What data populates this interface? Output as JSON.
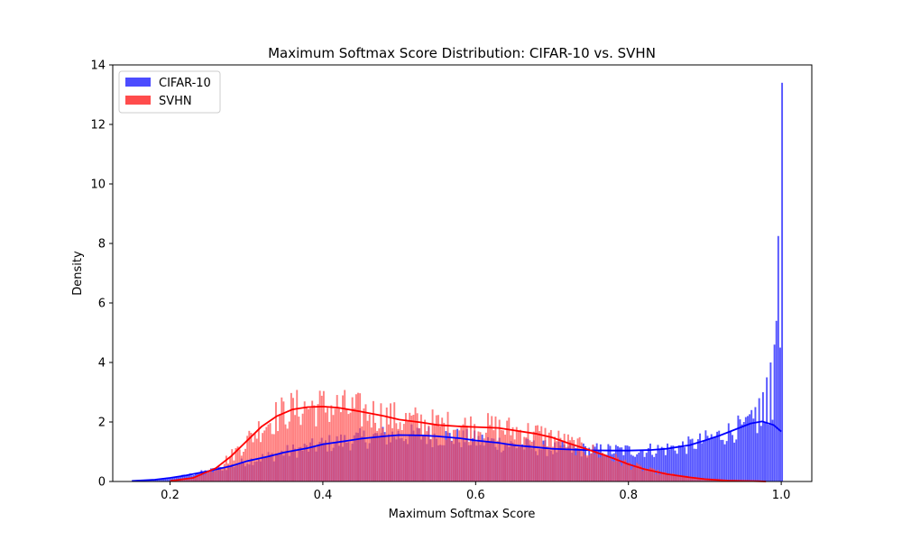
{
  "chart_data": {
    "type": "bar",
    "title": "Maximum Softmax Score Distribution: CIFAR-10 vs. SVHN",
    "xlabel": "Maximum Softmax Score",
    "ylabel": "Density",
    "xlim": [
      0.125,
      1.04
    ],
    "ylim": [
      0,
      14
    ],
    "xticks": [
      0.2,
      0.4,
      0.6,
      0.8,
      1.0
    ],
    "xtick_labels": [
      "0.2",
      "0.4",
      "0.6",
      "0.8",
      "1.0"
    ],
    "yticks": [
      0,
      2,
      4,
      6,
      8,
      10,
      12,
      14
    ],
    "ytick_labels": [
      "0",
      "2",
      "4",
      "6",
      "8",
      "10",
      "12",
      "14"
    ],
    "grid": false,
    "legend_position": "top-left",
    "series": [
      {
        "name": "CIFAR-10",
        "color": "#0000ff",
        "bar_color": "#4c4cff",
        "kde_x": [
          0.15,
          0.18,
          0.2,
          0.22,
          0.25,
          0.28,
          0.3,
          0.33,
          0.35,
          0.38,
          0.4,
          0.43,
          0.45,
          0.48,
          0.5,
          0.53,
          0.55,
          0.58,
          0.6,
          0.63,
          0.65,
          0.68,
          0.7,
          0.73,
          0.75,
          0.78,
          0.8,
          0.83,
          0.85,
          0.88,
          0.9,
          0.92,
          0.94,
          0.96,
          0.975,
          0.99,
          1.0
        ],
        "kde_y": [
          0.02,
          0.06,
          0.12,
          0.2,
          0.35,
          0.52,
          0.68,
          0.85,
          0.98,
          1.12,
          1.25,
          1.36,
          1.44,
          1.52,
          1.56,
          1.55,
          1.52,
          1.45,
          1.38,
          1.3,
          1.22,
          1.15,
          1.1,
          1.07,
          1.05,
          1.04,
          1.04,
          1.06,
          1.1,
          1.22,
          1.38,
          1.55,
          1.75,
          1.95,
          2.02,
          1.9,
          1.68
        ],
        "spike_x": [
          0.95,
          0.955,
          0.96,
          0.965,
          0.97,
          0.975,
          0.98,
          0.985,
          0.99,
          0.992,
          0.994,
          0.996,
          0.998,
          0.999
        ],
        "spike_y": [
          2.0,
          2.2,
          2.4,
          2.5,
          2.8,
          3.0,
          3.5,
          4.0,
          4.6,
          5.4,
          6.1,
          8.25,
          4.5,
          13.4
        ]
      },
      {
        "name": "SVHN",
        "color": "#ff0000",
        "bar_color": "#ff4c4c",
        "kde_x": [
          0.2,
          0.23,
          0.26,
          0.28,
          0.3,
          0.32,
          0.34,
          0.36,
          0.38,
          0.4,
          0.42,
          0.45,
          0.48,
          0.5,
          0.53,
          0.55,
          0.58,
          0.6,
          0.63,
          0.65,
          0.68,
          0.7,
          0.72,
          0.75,
          0.78,
          0.8,
          0.82,
          0.85,
          0.88,
          0.9,
          0.93,
          0.95,
          0.97,
          0.98
        ],
        "kde_y": [
          0.02,
          0.12,
          0.45,
          0.85,
          1.35,
          1.85,
          2.2,
          2.42,
          2.5,
          2.52,
          2.48,
          2.35,
          2.2,
          2.08,
          1.98,
          1.9,
          1.85,
          1.83,
          1.8,
          1.72,
          1.6,
          1.48,
          1.3,
          1.05,
          0.78,
          0.58,
          0.42,
          0.25,
          0.14,
          0.08,
          0.03,
          0.02,
          0.01,
          0.0
        ]
      }
    ]
  }
}
